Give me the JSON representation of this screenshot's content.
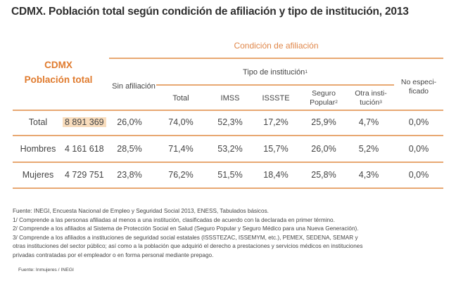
{
  "title": "CDMX. Población total según condición de afiliación y tipo de institución, 2013",
  "header": {
    "left_line1": "CDMX",
    "left_line2": "Población total",
    "condicion": "Condición de afiliación",
    "sin_afiliacion": "Sin afiliación",
    "tipo_institucion": "Tipo de institución",
    "tipo_institucion_sup": "1",
    "total": "Total",
    "imss": "IMSS",
    "issste": "ISSSTE",
    "seguro_line1": "Seguro",
    "seguro_line2": "Popular",
    "seguro_sup": "2",
    "otra_line1": "Otra insti-",
    "otra_line2": "tución",
    "otra_sup": "3",
    "no_esp_line1": "No especi-",
    "no_esp_line2": "ficado"
  },
  "rows": [
    {
      "label": "Total",
      "poblacion": "8 891 369",
      "sin_afiliacion": "26,0%",
      "total": "74,0%",
      "imss": "52,3%",
      "issste": "17,2%",
      "seguro_popular": "25,9%",
      "otra": "4,7%",
      "no_especificado": "0,0%"
    },
    {
      "label": "Hombres",
      "poblacion": "4 161 618",
      "sin_afiliacion": "28,5%",
      "total": "71,4%",
      "imss": "53,2%",
      "issste": "15,7%",
      "seguro_popular": "26,0%",
      "otra": "5,2%",
      "no_especificado": "0,0%"
    },
    {
      "label": "Mujeres",
      "poblacion": "4 729 751",
      "sin_afiliacion": "23,8%",
      "total": "76,2%",
      "imss": "51,5%",
      "issste": "18,4%",
      "seguro_popular": "25,8%",
      "otra": "4,3%",
      "no_especificado": "0,0%"
    }
  ],
  "notes": [
    "Fuente: INEGI, Encuesta Nacional de Empleo y Seguridad Social 2013, ENESS, Tabulados básicos.",
    "1/ Comprende a las personas afiliadas al menos a una institución, clasificadas de acuerdo con la declarada en primer término.",
    "2/ Comprende a los afiliados al Sistema de Protección Social en Salud (Seguro Popular y Seguro Médico para una Nueva Generación).",
    "3/ Comprende a los afiliados a instituciones de seguridad social estatales (ISSSTEZAC, ISSEMYM, etc.), PEMEX, SEDENA, SEMAR y",
    "otras instituciones del sector público; así como a la población que adquirió el derecho a prestaciones y servicios médicos en instituciones",
    "privadas contratadas por el empleador o en forma personal mediante prepago."
  ],
  "source": "Fuente: Inmujeres / INEGI",
  "colors": {
    "accent": "#e07b2e",
    "rule": "#e8a872",
    "highlight": "#f8dcbc"
  }
}
